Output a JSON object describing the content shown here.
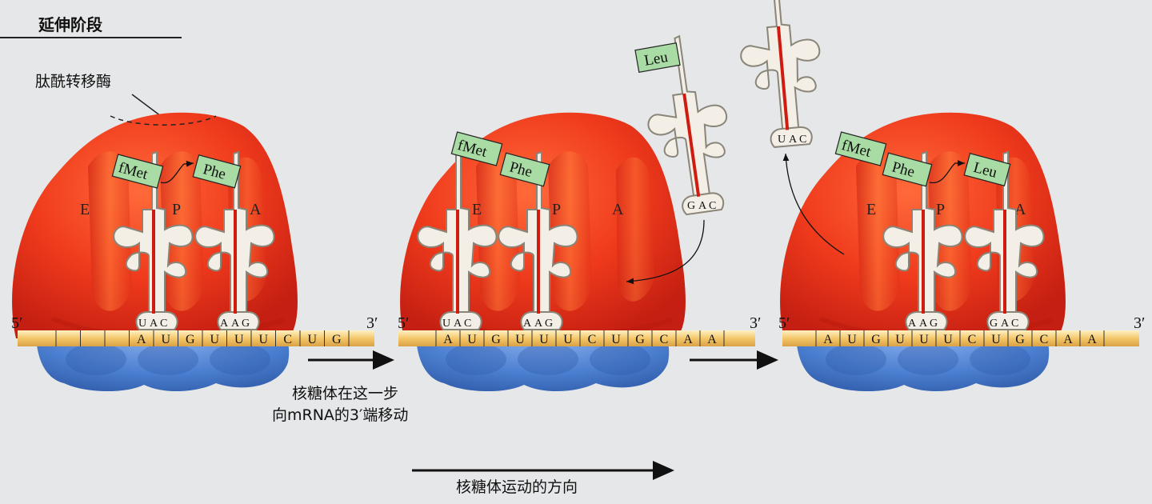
{
  "title": "延伸阶段",
  "enzyme_label": "肽酰转移酶",
  "caption_move_line1": "核糖体在这一步",
  "caption_move_line2": "向mRNA的3′端移动",
  "caption_direction": "核糖体运动的方向",
  "five_prime": "5′",
  "three_prime": "3′",
  "sites": {
    "e": "E",
    "p": "P",
    "a": "A"
  },
  "panel1": {
    "codons": [
      "",
      "",
      "",
      "A",
      "U",
      "G",
      "U",
      "U",
      "U",
      "C",
      "U",
      "G"
    ],
    "trna_p": {
      "aa": "fMet",
      "anticodon": [
        "U",
        "A",
        "C"
      ]
    },
    "trna_a": {
      "aa": "Phe",
      "anticodon": [
        "A",
        "A",
        "G"
      ]
    }
  },
  "panel2": {
    "codons": [
      "A",
      "U",
      "G",
      "U",
      "U",
      "U",
      "C",
      "U",
      "G",
      "C",
      "A",
      "A"
    ],
    "trna_p": {
      "aa1": "fMet",
      "aa2": "Phe",
      "anticodon": [
        "U",
        "A",
        "C"
      ]
    },
    "trna_a": {
      "anticodon": [
        "A",
        "A",
        "G"
      ]
    },
    "incoming": {
      "aa": "Leu",
      "anticodon": [
        "G",
        "A",
        "C"
      ]
    }
  },
  "panel3": {
    "codons": [
      "A",
      "U",
      "G",
      "U",
      "U",
      "U",
      "C",
      "U",
      "G",
      "C",
      "A",
      "A"
    ],
    "trna_p": {
      "aa1": "fMet",
      "aa2": "Phe",
      "anticodon": [
        "A",
        "A",
        "G"
      ]
    },
    "trna_a": {
      "aa": "Leu",
      "anticodon": [
        "G",
        "A",
        "C"
      ]
    },
    "leaving": {
      "anticodon": [
        "U",
        "A",
        "C"
      ]
    }
  },
  "colors": {
    "red": "#e8301c",
    "blue": "#4b7fd0",
    "mrna": "#f2c66b",
    "aa_box": "#a9dba4",
    "trna": "#d8d2c6"
  }
}
